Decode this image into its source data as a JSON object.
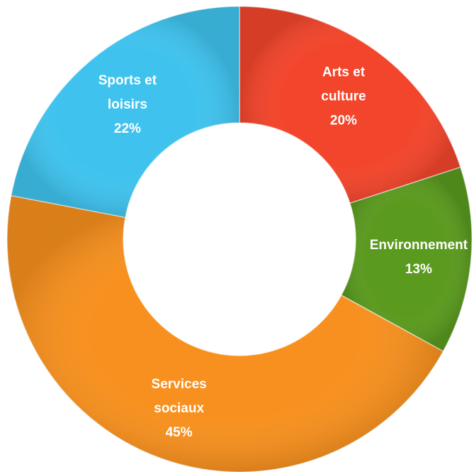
{
  "chart_data": {
    "type": "pie",
    "title": "",
    "series": [
      {
        "name": "Arts et culture",
        "label_lines": [
          "Arts et",
          "culture"
        ],
        "value": 20,
        "display": "20%",
        "color": "#f2452b"
      },
      {
        "name": "Environnement",
        "label_lines": [
          "Environnement"
        ],
        "value": 13,
        "display": "13%",
        "color": "#5a9a1e"
      },
      {
        "name": "Services sociaux",
        "label_lines": [
          "Services",
          "sociaux"
        ],
        "value": 45,
        "display": "45%",
        "color": "#f7901e"
      },
      {
        "name": "Sports et loisirs",
        "label_lines": [
          "Sports et",
          "loisirs"
        ],
        "value": 22,
        "display": "22%",
        "color": "#3fc3ee"
      }
    ],
    "legend": "none",
    "grid": false
  }
}
